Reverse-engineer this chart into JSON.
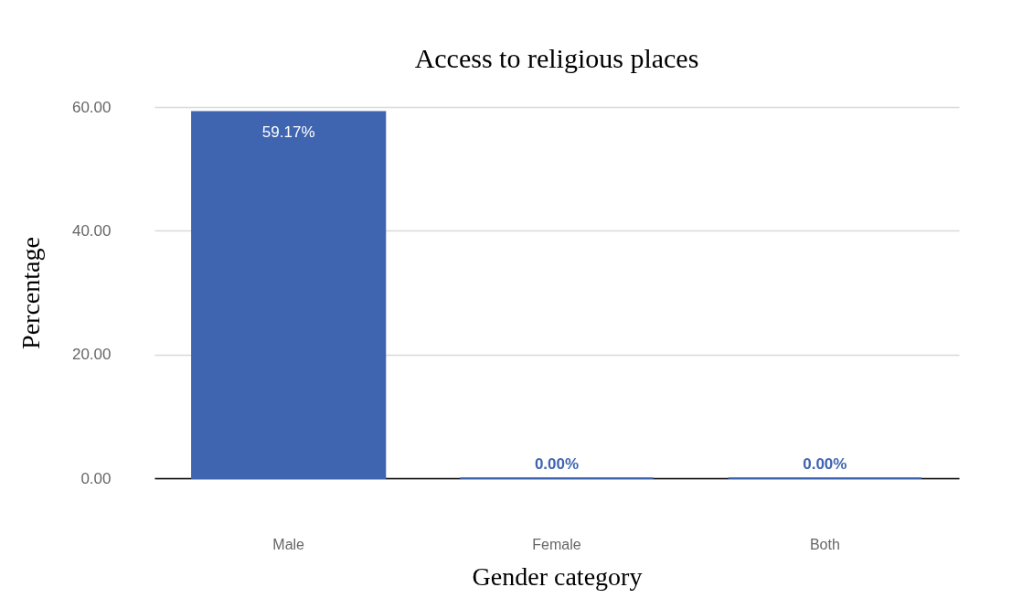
{
  "chart_data": {
    "type": "bar",
    "title": "Access to religious places",
    "xlabel": "Gender category",
    "ylabel": "Percentage",
    "categories": [
      "Male",
      "Female",
      "Both"
    ],
    "values": [
      59.17,
      0,
      0
    ],
    "color": "#3f65b0",
    "value_labels": [
      "59.17%",
      "0.00%",
      "0.00%"
    ],
    "ylim": [
      0,
      60
    ],
    "yticks": [
      {
        "value": 0,
        "label": "0.00"
      },
      {
        "value": 20,
        "label": "20.00"
      },
      {
        "value": 40,
        "label": "40.00"
      },
      {
        "value": 60,
        "label": "60.00"
      }
    ],
    "grid": "y"
  }
}
